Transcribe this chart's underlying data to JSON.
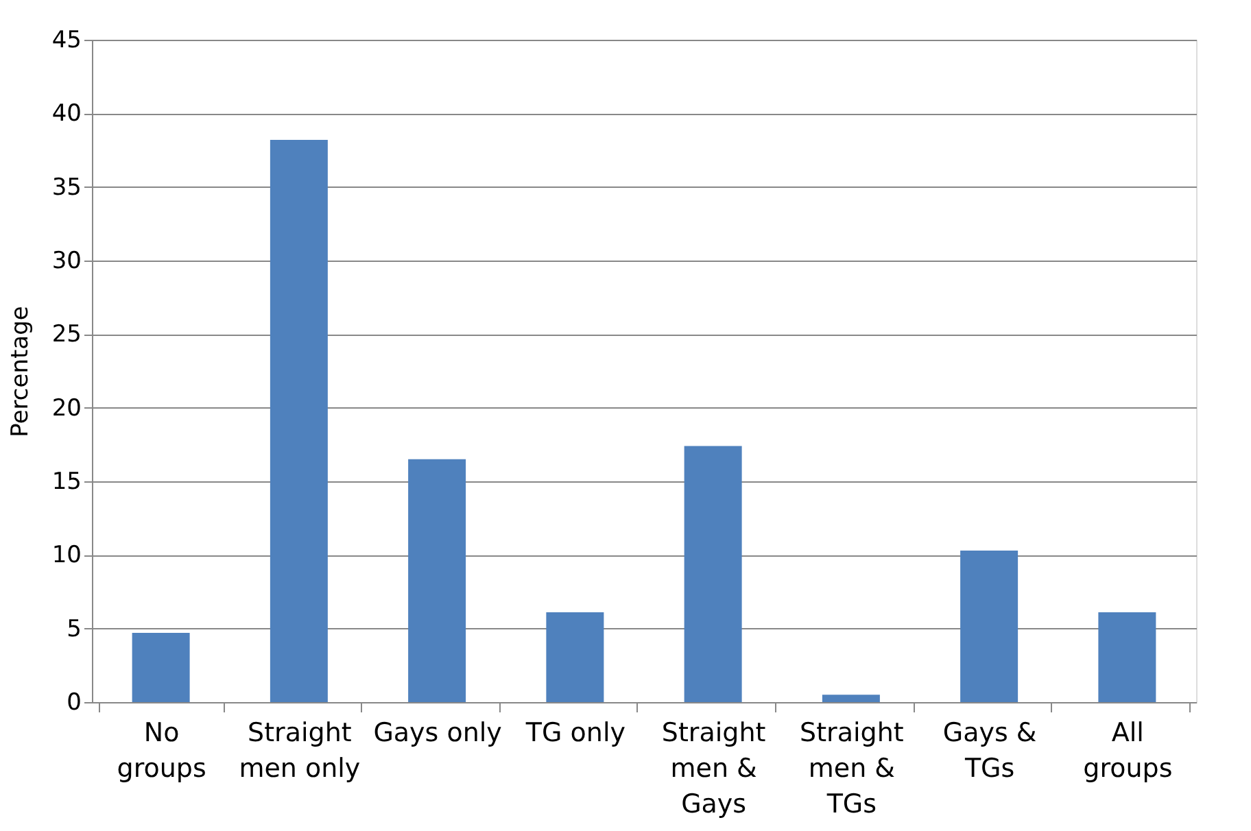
{
  "chart_data": {
    "type": "bar",
    "ylabel": "Percentage",
    "categories": [
      "No\ngroups",
      "Straight\nmen only",
      "Gays only",
      "TG only",
      "Straight\nmen &\nGays",
      "Straight\nmen &\nTGs",
      "Gays &\nTGs",
      "All\ngroups"
    ],
    "values": [
      4.7,
      38.2,
      16.5,
      6.1,
      17.4,
      0.5,
      10.3,
      6.1
    ],
    "color": "#4f81bd",
    "ylim": [
      0,
      45
    ],
    "yticks": [
      0,
      5,
      10,
      15,
      20,
      25,
      30,
      35,
      40,
      45
    ],
    "grid": "y"
  }
}
